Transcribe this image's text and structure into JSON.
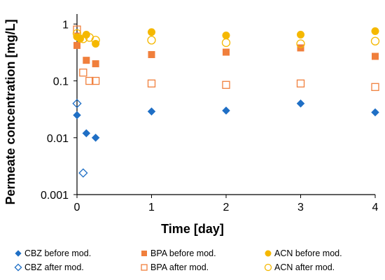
{
  "chart_data": {
    "type": "scatter",
    "title": "",
    "xlabel": "Time [day]",
    "ylabel": "Permeate concentration [mg/L]",
    "xlim": [
      0,
      4
    ],
    "ylim": [
      0.001,
      1.5
    ],
    "yscale": "log",
    "xticks": [
      0,
      1,
      2,
      3,
      4
    ],
    "xtick_labels": [
      "0",
      "1",
      "2",
      "3",
      "4"
    ],
    "yticks": [
      1,
      0.1,
      0.01,
      0.001
    ],
    "ytick_labels": [
      "1",
      "0.1",
      "0.01",
      "0.001"
    ],
    "grid": false,
    "legend_position": "bottom",
    "series": [
      {
        "name": "CBZ before mod.",
        "marker": "diamond",
        "filled": true,
        "color": "#1F6FC5",
        "x": [
          0,
          0.125,
          0.25,
          1,
          2,
          3,
          4
        ],
        "y": [
          0.025,
          0.012,
          0.01,
          0.029,
          0.03,
          0.04,
          0.028
        ]
      },
      {
        "name": "BPA before mod.",
        "marker": "square",
        "filled": true,
        "color": "#F07F3C",
        "x": [
          0,
          0.125,
          0.25,
          1,
          2,
          3,
          4
        ],
        "y": [
          0.42,
          0.23,
          0.2,
          0.29,
          0.32,
          0.38,
          0.27
        ]
      },
      {
        "name": "ACN before mod.",
        "marker": "circle",
        "filled": true,
        "color": "#F5B800",
        "x": [
          0,
          0.042,
          0.125,
          0.25,
          1,
          2,
          3,
          4
        ],
        "y": [
          0.6,
          0.55,
          0.65,
          0.45,
          0.72,
          0.63,
          0.65,
          0.75
        ]
      },
      {
        "name": "CBZ after mod.",
        "marker": "diamond",
        "filled": false,
        "color": "#1F6FC5",
        "x": [
          0,
          0.083
        ],
        "y": [
          0.04,
          0.0024
        ]
      },
      {
        "name": "BPA after mod.",
        "marker": "square",
        "filled": false,
        "color": "#F07F3C",
        "x": [
          0,
          0.083,
          0.167,
          0.25,
          1,
          2,
          3,
          4
        ],
        "y": [
          0.8,
          0.14,
          0.1,
          0.1,
          0.09,
          0.085,
          0.09,
          0.078
        ]
      },
      {
        "name": "ACN after mod.",
        "marker": "circle",
        "filled": false,
        "color": "#F5B800",
        "x": [
          0,
          0.083,
          0.167,
          0.25,
          1,
          2,
          3,
          4
        ],
        "y": [
          0.68,
          0.55,
          0.58,
          0.52,
          0.52,
          0.47,
          0.45,
          0.5
        ]
      }
    ]
  }
}
